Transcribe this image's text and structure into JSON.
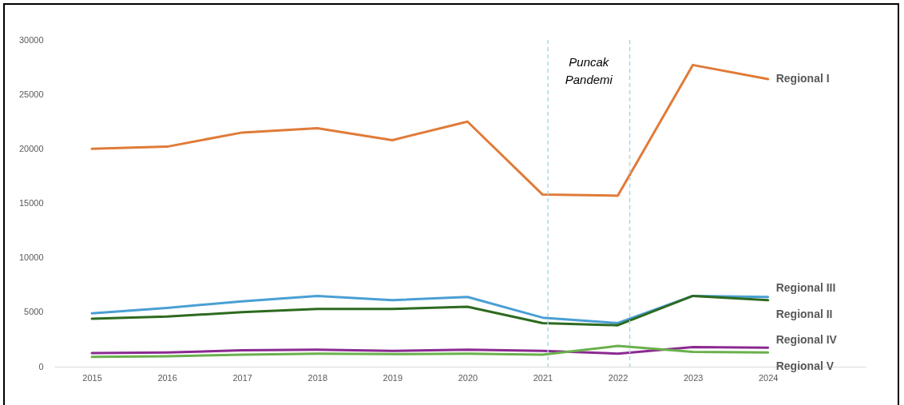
{
  "chart_data": {
    "type": "line",
    "x": [
      2015,
      2016,
      2017,
      2018,
      2019,
      2020,
      2021,
      2022,
      2023,
      2024
    ],
    "xlim": [
      2014.5,
      2025.3
    ],
    "xticks": [
      2015,
      2016,
      2017,
      2018,
      2019,
      2020,
      2021,
      2022,
      2023,
      2024
    ],
    "ylim": [
      0,
      30000
    ],
    "yticks": [
      0,
      5000,
      10000,
      15000,
      20000,
      25000,
      30000
    ],
    "grid": false,
    "legend": false,
    "line_style": "solid",
    "marker": "none",
    "series": [
      {
        "name": "Regional I",
        "color": "#e07b39",
        "values": [
          20000,
          20200,
          21500,
          21900,
          20800,
          22500,
          15800,
          15700,
          27700,
          26400
        ]
      },
      {
        "name": "Regional III",
        "color": "#4a9fd4",
        "values": [
          4900,
          5400,
          6000,
          6500,
          6100,
          6400,
          4500,
          4000,
          6500,
          6400
        ]
      },
      {
        "name": "Regional II",
        "color": "#2d6a1f",
        "values": [
          4400,
          4600,
          5000,
          5300,
          5300,
          5500,
          4000,
          3800,
          6500,
          6100
        ]
      },
      {
        "name": "Regional IV",
        "color": "#8b2a91",
        "values": [
          1250,
          1300,
          1500,
          1550,
          1450,
          1550,
          1450,
          1200,
          1800,
          1750
        ]
      },
      {
        "name": "Regional V",
        "color": "#6ab04c",
        "values": [
          900,
          950,
          1100,
          1200,
          1150,
          1200,
          1100,
          1900,
          1350,
          1300
        ]
      }
    ],
    "ref_lines": [
      {
        "axis": "x",
        "value": 2021.07,
        "color": "#a8d8ea",
        "line_style": "dashed"
      },
      {
        "axis": "x",
        "value": 2022.16,
        "color": "#a8d8ea",
        "line_style": "dashed"
      }
    ],
    "annotations": [
      "Puncak Pandemi"
    ]
  }
}
